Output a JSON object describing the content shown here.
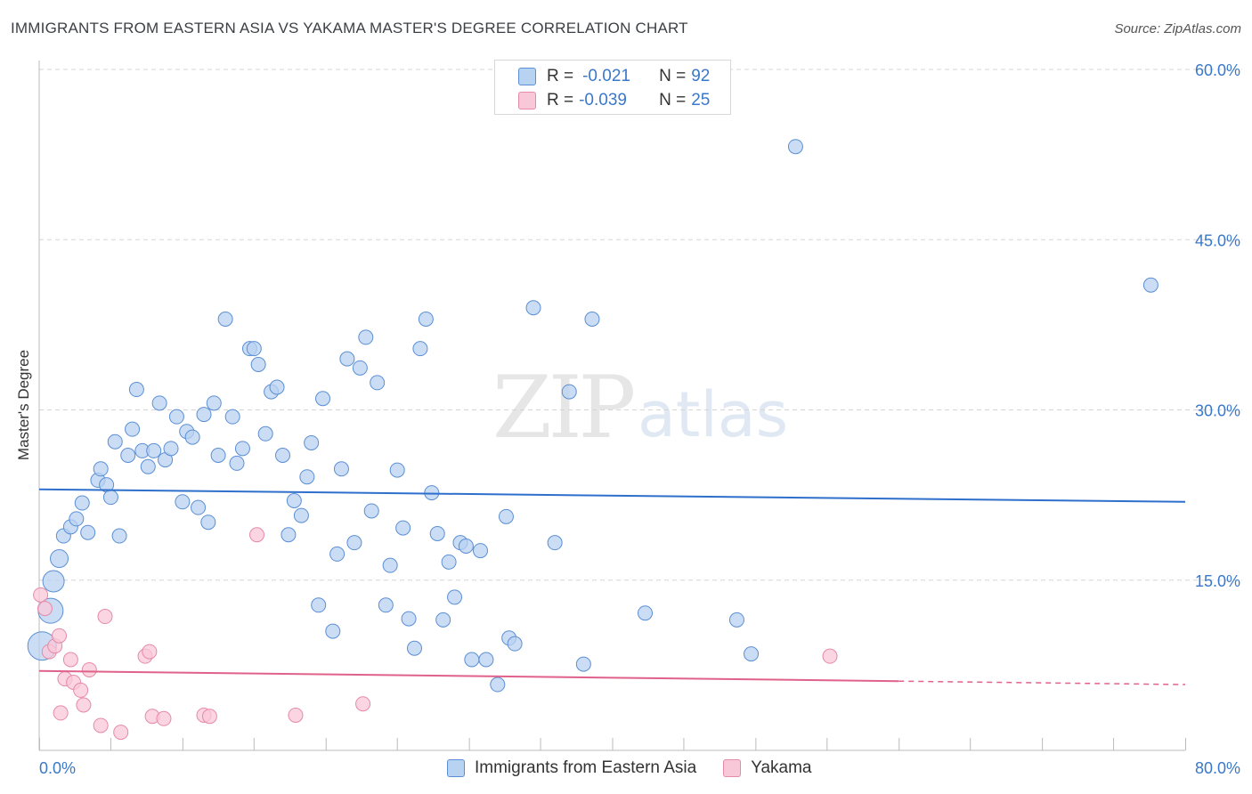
{
  "title": "IMMIGRANTS FROM EASTERN ASIA VS YAKAMA MASTER'S DEGREE CORRELATION CHART",
  "source": "Source: ZipAtlas.com",
  "watermark": {
    "zip": "ZIP",
    "atlas": "atlas"
  },
  "legend_top": [
    {
      "r_label": "R =",
      "r_value": "-0.021",
      "n_label": "N =",
      "n_value": "92"
    },
    {
      "r_label": "R =",
      "r_value": "-0.039",
      "n_label": "N =",
      "n_value": "25"
    }
  ],
  "colors": {
    "blue_fill": "#b8d2f2",
    "blue_stroke": "#5b8fd4",
    "blue_line": "#2f6fcc",
    "pink_fill": "#f9c8d8",
    "pink_stroke": "#e58aa8",
    "pink_line": "#e0628a",
    "grid": "#d5d5d5",
    "axis_text": "#3a78c9"
  },
  "chart_data": {
    "type": "scatter",
    "title": "IMMIGRANTS FROM EASTERN ASIA VS YAKAMA MASTER'S DEGREE CORRELATION CHART",
    "xlabel": "",
    "ylabel": "Master's Degree",
    "xlim": [
      0,
      80
    ],
    "ylim": [
      0,
      60
    ],
    "x_tick_labels": [
      "0.0%",
      "80.0%"
    ],
    "y_ticks": [
      15,
      30,
      45,
      60
    ],
    "y_tick_labels": [
      "15.0%",
      "30.0%",
      "45.0%",
      "60.0%"
    ],
    "grid": true,
    "series": [
      {
        "name": "Immigrants from Eastern Asia",
        "color": "#5b8fd4",
        "R": -0.021,
        "N": 92,
        "trend": {
          "x0": 0,
          "y0": 23.0,
          "x1": 80,
          "y1": 21.9
        },
        "points": [
          [
            0.2,
            9.2
          ],
          [
            0.8,
            12.3
          ],
          [
            1.0,
            14.9
          ],
          [
            1.4,
            16.9
          ],
          [
            1.7,
            18.9
          ],
          [
            2.2,
            19.7
          ],
          [
            2.6,
            20.4
          ],
          [
            3.0,
            21.8
          ],
          [
            3.4,
            19.2
          ],
          [
            4.1,
            23.8
          ],
          [
            4.3,
            24.8
          ],
          [
            4.7,
            23.4
          ],
          [
            5.0,
            22.3
          ],
          [
            5.3,
            27.2
          ],
          [
            5.6,
            18.9
          ],
          [
            6.2,
            26.0
          ],
          [
            6.5,
            28.3
          ],
          [
            6.8,
            31.8
          ],
          [
            7.2,
            26.4
          ],
          [
            7.6,
            25.0
          ],
          [
            8.0,
            26.4
          ],
          [
            8.4,
            30.6
          ],
          [
            8.8,
            25.6
          ],
          [
            9.2,
            26.6
          ],
          [
            9.6,
            29.4
          ],
          [
            10.0,
            21.9
          ],
          [
            10.3,
            28.1
          ],
          [
            10.7,
            27.6
          ],
          [
            11.1,
            21.4
          ],
          [
            11.5,
            29.6
          ],
          [
            11.8,
            20.1
          ],
          [
            12.2,
            30.6
          ],
          [
            12.5,
            26.0
          ],
          [
            13.0,
            38.0
          ],
          [
            13.5,
            29.4
          ],
          [
            13.8,
            25.3
          ],
          [
            14.2,
            26.6
          ],
          [
            14.7,
            35.4
          ],
          [
            15.0,
            35.4
          ],
          [
            15.3,
            34.0
          ],
          [
            15.8,
            27.9
          ],
          [
            16.2,
            31.6
          ],
          [
            16.6,
            32.0
          ],
          [
            17.0,
            26.0
          ],
          [
            17.4,
            19.0
          ],
          [
            17.8,
            22.0
          ],
          [
            18.3,
            20.7
          ],
          [
            18.7,
            24.1
          ],
          [
            19.0,
            27.1
          ],
          [
            19.5,
            12.8
          ],
          [
            19.8,
            31.0
          ],
          [
            20.5,
            10.5
          ],
          [
            20.8,
            17.3
          ],
          [
            21.1,
            24.8
          ],
          [
            21.5,
            34.5
          ],
          [
            22.0,
            18.3
          ],
          [
            22.4,
            33.7
          ],
          [
            22.8,
            36.4
          ],
          [
            23.2,
            21.1
          ],
          [
            23.6,
            32.4
          ],
          [
            24.2,
            12.8
          ],
          [
            24.5,
            16.3
          ],
          [
            25.0,
            24.7
          ],
          [
            25.4,
            19.6
          ],
          [
            25.8,
            11.6
          ],
          [
            26.2,
            9.0
          ],
          [
            26.6,
            35.4
          ],
          [
            27.0,
            38.0
          ],
          [
            27.4,
            22.7
          ],
          [
            27.8,
            19.1
          ],
          [
            28.2,
            11.5
          ],
          [
            28.6,
            16.6
          ],
          [
            29.0,
            13.5
          ],
          [
            29.4,
            18.3
          ],
          [
            29.8,
            18.0
          ],
          [
            30.2,
            8.0
          ],
          [
            30.8,
            17.6
          ],
          [
            31.2,
            8.0
          ],
          [
            32.0,
            5.8
          ],
          [
            32.6,
            20.6
          ],
          [
            32.8,
            9.9
          ],
          [
            33.2,
            9.4
          ],
          [
            34.5,
            39.0
          ],
          [
            36.0,
            18.3
          ],
          [
            37.0,
            31.6
          ],
          [
            38.0,
            7.6
          ],
          [
            38.6,
            38.0
          ],
          [
            42.3,
            12.1
          ],
          [
            48.7,
            11.5
          ],
          [
            49.7,
            8.5
          ],
          [
            52.8,
            53.2
          ],
          [
            77.6,
            41.0
          ]
        ]
      },
      {
        "name": "Yakama",
        "color": "#e58aa8",
        "R": -0.039,
        "N": 25,
        "trend": {
          "x0": 0,
          "y0": 7.0,
          "x1": 60,
          "y1": 6.1,
          "dash_to_x": 80,
          "dash_to_y": 5.8
        },
        "points": [
          [
            0.1,
            13.7
          ],
          [
            0.4,
            12.5
          ],
          [
            0.7,
            8.7
          ],
          [
            1.1,
            9.2
          ],
          [
            1.4,
            10.1
          ],
          [
            1.5,
            3.3
          ],
          [
            1.8,
            6.3
          ],
          [
            2.2,
            8.0
          ],
          [
            2.4,
            6.0
          ],
          [
            2.9,
            5.3
          ],
          [
            3.1,
            4.0
          ],
          [
            3.5,
            7.1
          ],
          [
            4.3,
            2.2
          ],
          [
            4.6,
            11.8
          ],
          [
            5.7,
            1.6
          ],
          [
            7.4,
            8.3
          ],
          [
            7.7,
            8.7
          ],
          [
            7.9,
            3.0
          ],
          [
            8.7,
            2.8
          ],
          [
            11.5,
            3.1
          ],
          [
            11.9,
            3.0
          ],
          [
            15.2,
            19.0
          ],
          [
            17.9,
            3.1
          ],
          [
            22.6,
            4.1
          ],
          [
            55.2,
            8.3
          ]
        ]
      }
    ]
  },
  "bottom_legend": [
    {
      "label": "Immigrants from Eastern Asia"
    },
    {
      "label": "Yakama"
    }
  ]
}
